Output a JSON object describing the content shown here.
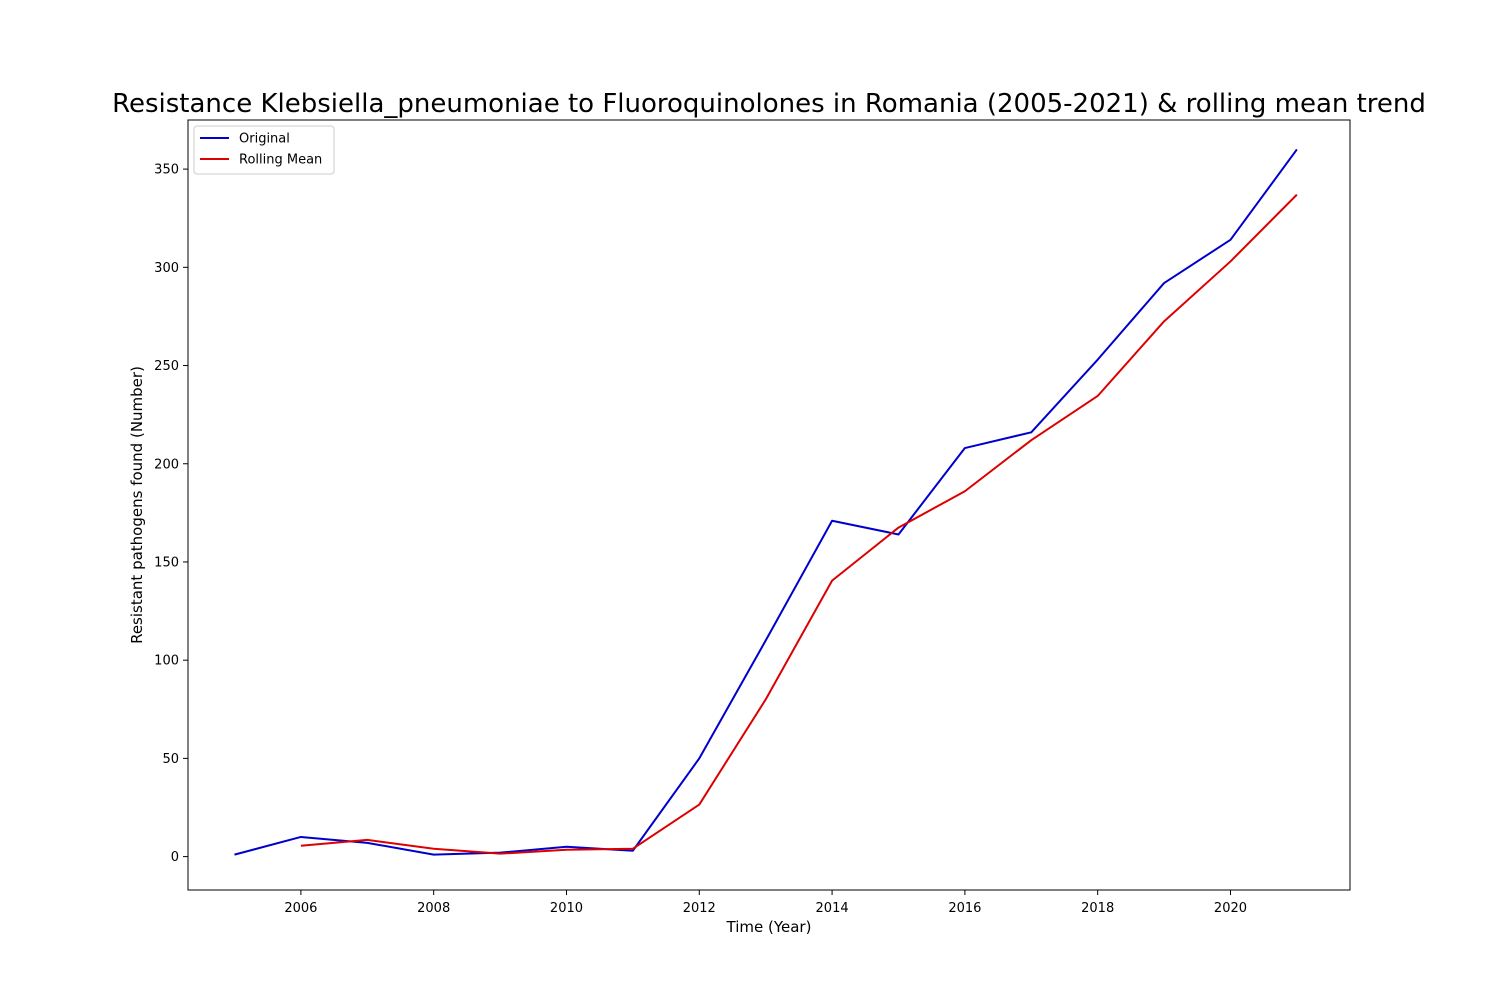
{
  "chart_data": {
    "type": "line",
    "title": "Resistance Klebsiella_pneumoniae to Fluoroquinolones in Romania (2005-2021) & rolling mean trend",
    "xlabel": "Time (Year)",
    "ylabel": "Resistant pathogens found (Number)",
    "xlim": [
      2004.3,
      2021.8
    ],
    "ylim": [
      -17,
      375
    ],
    "xticks": [
      2006,
      2008,
      2010,
      2012,
      2014,
      2016,
      2018,
      2020
    ],
    "yticks": [
      0,
      50,
      100,
      150,
      200,
      250,
      300,
      350
    ],
    "grid": false,
    "legend": "top-left",
    "series": [
      {
        "name": "Original",
        "color": "#0000cc",
        "x": [
          2005,
          2006,
          2007,
          2008,
          2009,
          2010,
          2011,
          2012,
          2013,
          2014,
          2015,
          2016,
          2017,
          2018,
          2019,
          2020,
          2021
        ],
        "values": [
          1,
          10,
          7,
          1,
          2,
          5,
          3,
          50,
          110,
          171,
          164,
          208,
          216,
          253,
          292,
          314,
          360
        ]
      },
      {
        "name": "Rolling Mean",
        "color": "#dd0000",
        "x": [
          2006,
          2007,
          2008,
          2009,
          2010,
          2011,
          2012,
          2013,
          2014,
          2015,
          2016,
          2017,
          2018,
          2019,
          2020,
          2021
        ],
        "values": [
          5.5,
          8.5,
          4,
          1.5,
          3.5,
          4,
          26.5,
          80,
          140.5,
          167.5,
          186,
          212,
          234.5,
          272.5,
          303,
          337
        ]
      }
    ]
  }
}
